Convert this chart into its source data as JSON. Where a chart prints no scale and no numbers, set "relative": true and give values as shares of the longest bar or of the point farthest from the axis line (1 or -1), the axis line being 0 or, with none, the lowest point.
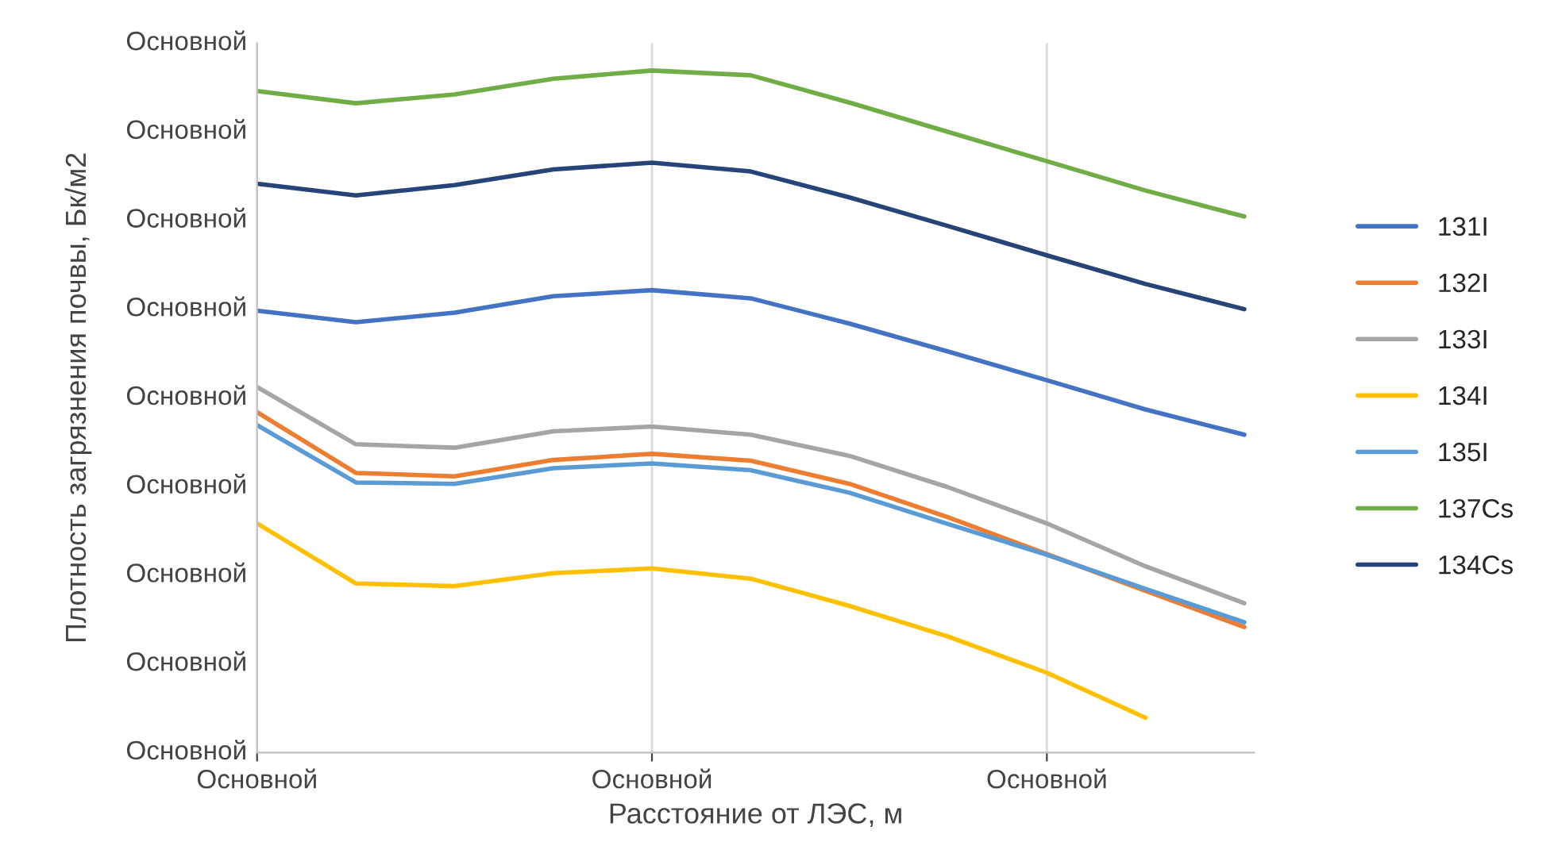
{
  "chart_data": {
    "type": "line",
    "relative": true,
    "xlabel": "Расстояние от ЛЭС, м",
    "ylabel": "Плотность загрязнения почвы, Бк/м2",
    "grid": "x",
    "legend": "right",
    "marker": "none",
    "line_style": "solid",
    "categories": [
      "Основной",
      null,
      null,
      null,
      "Основной",
      null,
      null,
      null,
      "Основной",
      null,
      null
    ],
    "annotations": [
      "Основной",
      "Основной",
      "Основной",
      "Основной",
      "Основной",
      "Основной",
      "Основной",
      "Основной",
      "Основной"
    ],
    "series": [
      {
        "name": "131I",
        "color": "#4472c4",
        "values": [
          0.648,
          0.631,
          0.645,
          0.669,
          0.678,
          0.666,
          0.629,
          0.588,
          0.546,
          0.503,
          0.466
        ]
      },
      {
        "name": "132I",
        "color": "#ed7d31",
        "values": [
          0.499,
          0.41,
          0.405,
          0.429,
          0.438,
          0.428,
          0.394,
          0.345,
          0.291,
          0.237,
          0.184
        ]
      },
      {
        "name": "133I",
        "color": "#a5a5a5",
        "values": [
          0.536,
          0.452,
          0.447,
          0.471,
          0.478,
          0.466,
          0.435,
          0.389,
          0.336,
          0.273,
          0.219
        ]
      },
      {
        "name": "134I",
        "color": "#ffc000",
        "values": [
          0.336,
          0.248,
          0.244,
          0.263,
          0.27,
          0.255,
          0.215,
          0.17,
          0.117,
          0.051,
          null
        ]
      },
      {
        "name": "135I",
        "color": "#5b9bd5",
        "values": [
          0.48,
          0.396,
          0.394,
          0.417,
          0.424,
          0.414,
          0.381,
          0.335,
          0.29,
          0.24,
          0.191
        ]
      },
      {
        "name": "137Cs",
        "color": "#70ad47",
        "values": [
          0.97,
          0.952,
          0.965,
          0.988,
          1.0,
          0.993,
          0.953,
          0.91,
          0.867,
          0.824,
          0.786
        ]
      },
      {
        "name": "134Cs",
        "color": "#264478",
        "values": [
          0.834,
          0.817,
          0.832,
          0.855,
          0.865,
          0.852,
          0.814,
          0.772,
          0.729,
          0.687,
          0.65
        ]
      }
    ]
  }
}
